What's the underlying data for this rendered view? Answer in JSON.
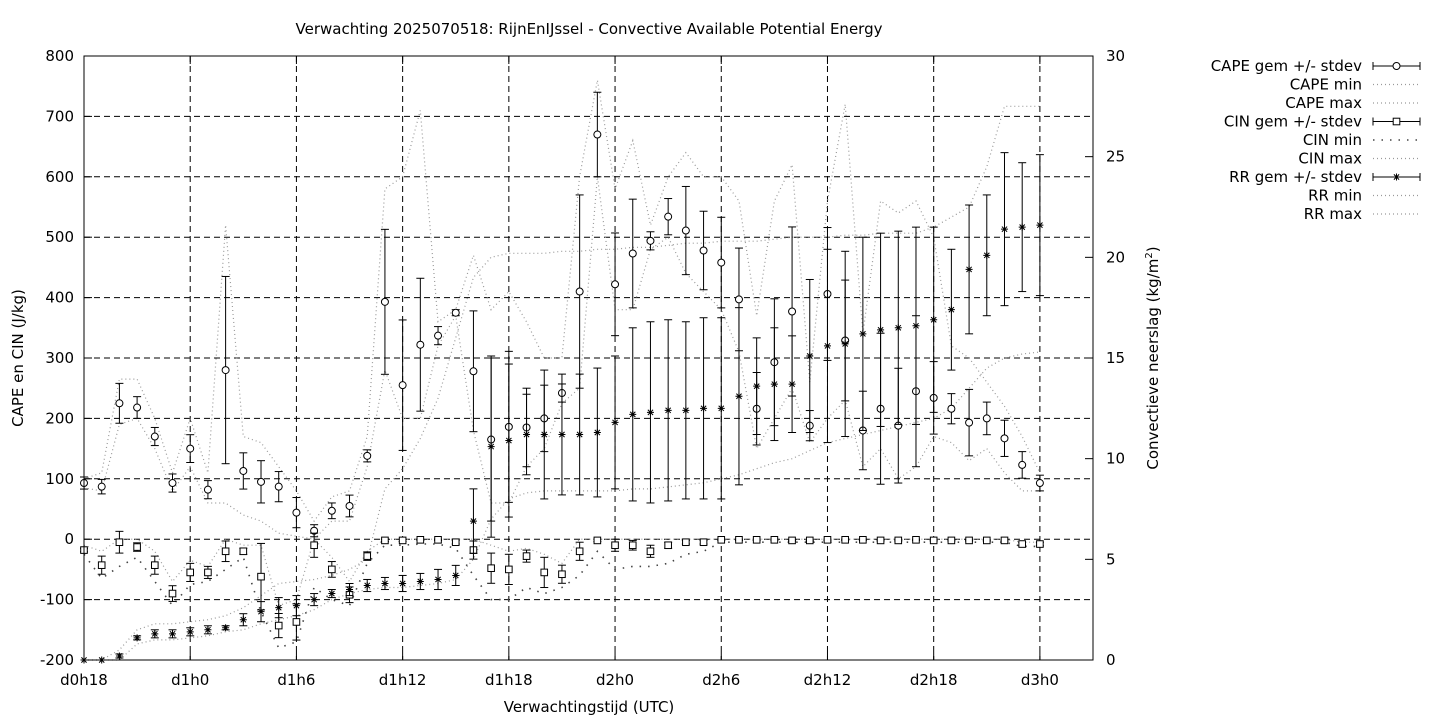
{
  "chart_data": {
    "type": "line",
    "title": "Verwachting 2025070518: RijnEnIJssel - Convective Available Potential Energy",
    "xlabel": "Verwachtingstijd (UTC)",
    "ylabel": "CAPE en CIN (J/kg)",
    "y2label": "Convectieve neerslag (kg/m",
    "y2label_sup": "2",
    "y2label_close": ")",
    "xlim": [
      18,
      75
    ],
    "ylim": [
      -200,
      800
    ],
    "y2lim": [
      0,
      30
    ],
    "xticks": [
      {
        "x": 18,
        "label": "d0h18"
      },
      {
        "x": 24,
        "label": "d1h0"
      },
      {
        "x": 30,
        "label": "d1h6"
      },
      {
        "x": 36,
        "label": "d1h12"
      },
      {
        "x": 42,
        "label": "d1h18"
      },
      {
        "x": 48,
        "label": "d2h0"
      },
      {
        "x": 54,
        "label": "d2h6"
      },
      {
        "x": 60,
        "label": "d2h12"
      },
      {
        "x": 66,
        "label": "d2h18"
      },
      {
        "x": 72,
        "label": "d3h0"
      }
    ],
    "yticks": [
      "-200",
      "-100",
      "0",
      "100",
      "200",
      "300",
      "400",
      "500",
      "600",
      "700",
      "800"
    ],
    "y2ticks": [
      "0",
      "5",
      "10",
      "15",
      "20",
      "25",
      "30"
    ],
    "grid": true,
    "legend_position": "top-right outside",
    "legend": [
      {
        "label": "CAPE gem +/- stdev",
        "style": "errorbar",
        "marker": "circle"
      },
      {
        "label": "CAPE min",
        "style": "dotted"
      },
      {
        "label": "CAPE max",
        "style": "dotted"
      },
      {
        "label": "CIN gem +/- stdev",
        "style": "errorbar",
        "marker": "square"
      },
      {
        "label": "CIN min",
        "style": "dotted-sparse"
      },
      {
        "label": "CIN max",
        "style": "dotted"
      },
      {
        "label": "RR gem +/- stdev",
        "style": "errorbar",
        "marker": "star"
      },
      {
        "label": "RR min",
        "style": "dotted"
      },
      {
        "label": "RR max",
        "style": "dotted"
      }
    ],
    "x": [
      18,
      19,
      20,
      21,
      22,
      23,
      24,
      25,
      26,
      27,
      28,
      29,
      30,
      31,
      32,
      33,
      34,
      35,
      36,
      37,
      38,
      39,
      40,
      41,
      42,
      43,
      44,
      45,
      46,
      47,
      48,
      49,
      50,
      51,
      52,
      53,
      54,
      55,
      56,
      57,
      58,
      59,
      60,
      61,
      62,
      63,
      64,
      65,
      66,
      67,
      68,
      69,
      70,
      71,
      72
    ],
    "series": [
      {
        "name": "CAPE gem +/- stdev",
        "axis": "y1",
        "mean": [
          93,
          87,
          225,
          218,
          170,
          93,
          150,
          82,
          280,
          113,
          95,
          87,
          44,
          14,
          47,
          55,
          138,
          393,
          255,
          322,
          337,
          375,
          278,
          165,
          186,
          185,
          200,
          242,
          410,
          670,
          422,
          473,
          494,
          534,
          511,
          478,
          458,
          397,
          216,
          293,
          377,
          188,
          406,
          329,
          180,
          216,
          188,
          245,
          234,
          216,
          193,
          200,
          167,
          123,
          93
        ],
        "stdev": [
          10,
          12,
          33,
          18,
          15,
          15,
          23,
          15,
          155,
          30,
          35,
          25,
          25,
          10,
          13,
          18,
          10,
          120,
          108,
          110,
          15,
          5,
          100,
          135,
          125,
          65,
          55,
          15,
          160,
          70,
          85,
          90,
          15,
          30,
          73,
          65,
          75,
          85,
          60,
          105,
          140,
          25,
          110,
          100,
          65,
          125,
          95,
          125,
          60,
          25,
          55,
          27,
          30,
          22,
          13
        ]
      },
      {
        "name": "CAPE min",
        "axis": "y1",
        "values": [
          85,
          80,
          190,
          200,
          150,
          80,
          120,
          60,
          60,
          40,
          30,
          10,
          5,
          0,
          30,
          30,
          120,
          280,
          200,
          200,
          320,
          370,
          180,
          60,
          60,
          120,
          150,
          225,
          250,
          600,
          380,
          380,
          480,
          500,
          440,
          410,
          380,
          310,
          150,
          200,
          250,
          160,
          200,
          230,
          120,
          150,
          100,
          120,
          170,
          160,
          130,
          150,
          110,
          80,
          80
        ]
      },
      {
        "name": "CAPE max",
        "axis": "y1",
        "values": [
          100,
          110,
          265,
          265,
          200,
          110,
          200,
          110,
          520,
          170,
          160,
          120,
          80,
          30,
          70,
          80,
          170,
          580,
          600,
          710,
          360,
          380,
          470,
          380,
          410,
          360,
          300,
          300,
          600,
          760,
          580,
          660,
          520,
          600,
          640,
          600,
          600,
          560,
          370,
          560,
          620,
          260,
          560,
          720,
          340,
          560,
          540,
          560,
          500,
          320,
          300,
          260,
          220,
          170,
          110
        ]
      },
      {
        "name": "CIN gem +/- stdev",
        "axis": "y1",
        "mean": [
          -18,
          -43,
          -5,
          -13,
          -43,
          -90,
          -55,
          -55,
          -20,
          -20,
          -62,
          -143,
          -137,
          -10,
          -50,
          -92,
          -28,
          -2,
          -2,
          -1,
          -1,
          -5,
          -18,
          -48,
          -50,
          -28,
          -55,
          -58,
          -20,
          -2,
          -10,
          -10,
          -20,
          -10,
          -5,
          -5,
          -1,
          -1,
          -1,
          -1,
          -2,
          -2,
          -1,
          -1,
          -1,
          -2,
          -2,
          -1,
          -2,
          -2,
          -2,
          -2,
          -2,
          -8,
          -8
        ],
        "stdev": [
          3,
          15,
          18,
          7,
          15,
          13,
          15,
          10,
          17,
          5,
          55,
          20,
          30,
          20,
          13,
          13,
          7,
          2,
          2,
          1,
          1,
          3,
          15,
          25,
          25,
          10,
          25,
          15,
          15,
          2,
          10,
          8,
          10,
          5,
          3,
          3,
          1,
          1,
          1,
          1,
          1,
          1,
          1,
          1,
          1,
          1,
          1,
          1,
          1,
          1,
          1,
          1,
          1,
          3,
          3
        ]
      },
      {
        "name": "CIN min",
        "axis": "y1",
        "values": [
          -25,
          -65,
          -45,
          -30,
          -70,
          -110,
          -75,
          -70,
          -50,
          -30,
          -120,
          -180,
          -170,
          -80,
          -100,
          -110,
          -40,
          -10,
          -10,
          -8,
          -8,
          -15,
          -60,
          -100,
          -100,
          -80,
          -90,
          -80,
          -60,
          -20,
          -50,
          -45,
          -45,
          -40,
          -25,
          -20,
          -5,
          -5,
          -5,
          -5,
          -5,
          -5,
          -5,
          -5,
          -5,
          -5,
          -5,
          -5,
          -5,
          -5,
          -5,
          -5,
          -5,
          -12,
          -12
        ]
      },
      {
        "name": "CIN max",
        "axis": "y1",
        "values": [
          -10,
          -20,
          0,
          0,
          -20,
          -70,
          -35,
          -45,
          0,
          -10,
          -10,
          -110,
          -100,
          0,
          -30,
          -70,
          -20,
          0,
          0,
          0,
          0,
          0,
          0,
          -10,
          -20,
          -15,
          -25,
          -40,
          0,
          0,
          0,
          0,
          0,
          0,
          0,
          0,
          0,
          0,
          0,
          0,
          0,
          0,
          0,
          0,
          0,
          0,
          0,
          0,
          0,
          0,
          0,
          0,
          0,
          -5,
          -5
        ]
      },
      {
        "name": "RR gem +/- stdev",
        "axis": "y2",
        "mean": [
          0,
          0,
          0.2,
          1.1,
          1.3,
          1.3,
          1.4,
          1.5,
          1.6,
          2.0,
          2.4,
          2.6,
          2.7,
          3.0,
          3.3,
          3.5,
          3.7,
          3.8,
          3.8,
          3.9,
          4.0,
          4.2,
          6.9,
          10.6,
          10.9,
          11.2,
          11.2,
          11.2,
          11.2,
          11.3,
          11.8,
          12.2,
          12.3,
          12.4,
          12.4,
          12.5,
          12.5,
          13.1,
          13.6,
          13.7,
          13.7,
          15.1,
          15.6,
          15.7,
          16.2,
          16.4,
          16.5,
          16.6,
          16.9,
          17.4,
          19.4,
          20.1,
          21.4,
          21.5,
          21.6
        ],
        "stdev": [
          0,
          0,
          0.1,
          0.1,
          0.2,
          0.2,
          0.2,
          0.2,
          0.1,
          0.3,
          0.5,
          0.5,
          0.5,
          0.3,
          0.2,
          0.3,
          0.3,
          0.3,
          0.4,
          0.4,
          0.5,
          0.5,
          1.6,
          4.5,
          3.8,
          2.0,
          3.2,
          3.0,
          3.0,
          3.2,
          3.3,
          4.3,
          4.5,
          4.5,
          4.4,
          4.5,
          4.5,
          4.4,
          2.4,
          2.8,
          2.4,
          3.8,
          4.8,
          4.6,
          4.8,
          4.8,
          4.8,
          4.9,
          4.6,
          3.0,
          3.2,
          3.0,
          3.8,
          3.2,
          3.5
        ]
      },
      {
        "name": "RR min",
        "axis": "y2",
        "values": [
          0,
          0,
          0,
          0.8,
          1.0,
          1.0,
          1.1,
          1.2,
          1.4,
          1.5,
          1.8,
          2.0,
          2.2,
          2.5,
          3.0,
          3.3,
          3.5,
          3.6,
          3.6,
          3.7,
          3.8,
          4.0,
          5.0,
          7.0,
          8.0,
          8.3,
          8.4,
          8.4,
          8.4,
          8.4,
          8.4,
          8.5,
          8.5,
          8.6,
          8.7,
          8.8,
          9.0,
          9.2,
          9.5,
          9.8,
          10.0,
          10.4,
          10.8,
          11.0,
          11.2,
          11.4,
          11.6,
          11.8,
          12.0,
          12.5,
          13.5,
          14.5,
          15.0,
          15.2,
          15.3
        ]
      },
      {
        "name": "RR max",
        "axis": "y2",
        "values": [
          0,
          0,
          0.5,
          1.5,
          1.8,
          1.8,
          1.9,
          2.0,
          2.2,
          2.6,
          3.2,
          3.8,
          3.9,
          4.0,
          4.2,
          4.5,
          5.0,
          8.5,
          9.5,
          11.0,
          13.0,
          16.0,
          19.0,
          20.0,
          20.2,
          20.2,
          20.2,
          20.3,
          20.3,
          20.4,
          20.4,
          20.5,
          20.5,
          20.6,
          20.7,
          20.7,
          20.8,
          20.8,
          20.8,
          20.9,
          21.0,
          21.0,
          21.0,
          21.1,
          21.1,
          21.2,
          21.2,
          21.2,
          21.5,
          22.0,
          22.5,
          24.5,
          27.5,
          27.5,
          27.5
        ]
      }
    ]
  }
}
